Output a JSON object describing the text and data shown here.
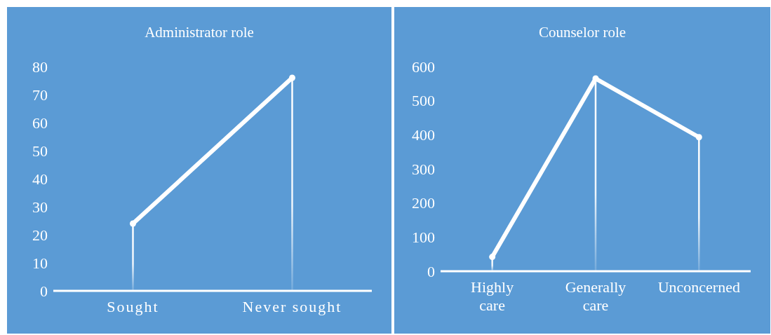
{
  "chart_data": [
    {
      "type": "line",
      "title": "Administrator role",
      "categories": [
        "Sought",
        "Never sought"
      ],
      "ylim": [
        0,
        80
      ],
      "yticks": [
        0,
        10,
        20,
        30,
        40,
        50,
        60,
        70,
        80
      ],
      "series": [
        {
          "color": "#ffffff",
          "values": [
            24,
            76
          ]
        },
        {
          "type": "lollipop",
          "marker": "circle",
          "color": "#ffffff",
          "values": [
            24,
            76
          ]
        }
      ]
    },
    {
      "type": "line",
      "title": "Counselor role",
      "categories": [
        "Highly care",
        "Generally care",
        "Unconcerned"
      ],
      "ylim": [
        0,
        600
      ],
      "yticks": [
        0,
        100,
        200,
        300,
        400,
        500,
        600
      ],
      "series": [
        {
          "color": "#ffffff",
          "values": [
            42,
            565,
            393
          ]
        },
        {
          "type": "lollipop",
          "marker": "circle",
          "color": "#ffffff",
          "values": [
            42,
            565,
            393
          ]
        }
      ]
    }
  ]
}
